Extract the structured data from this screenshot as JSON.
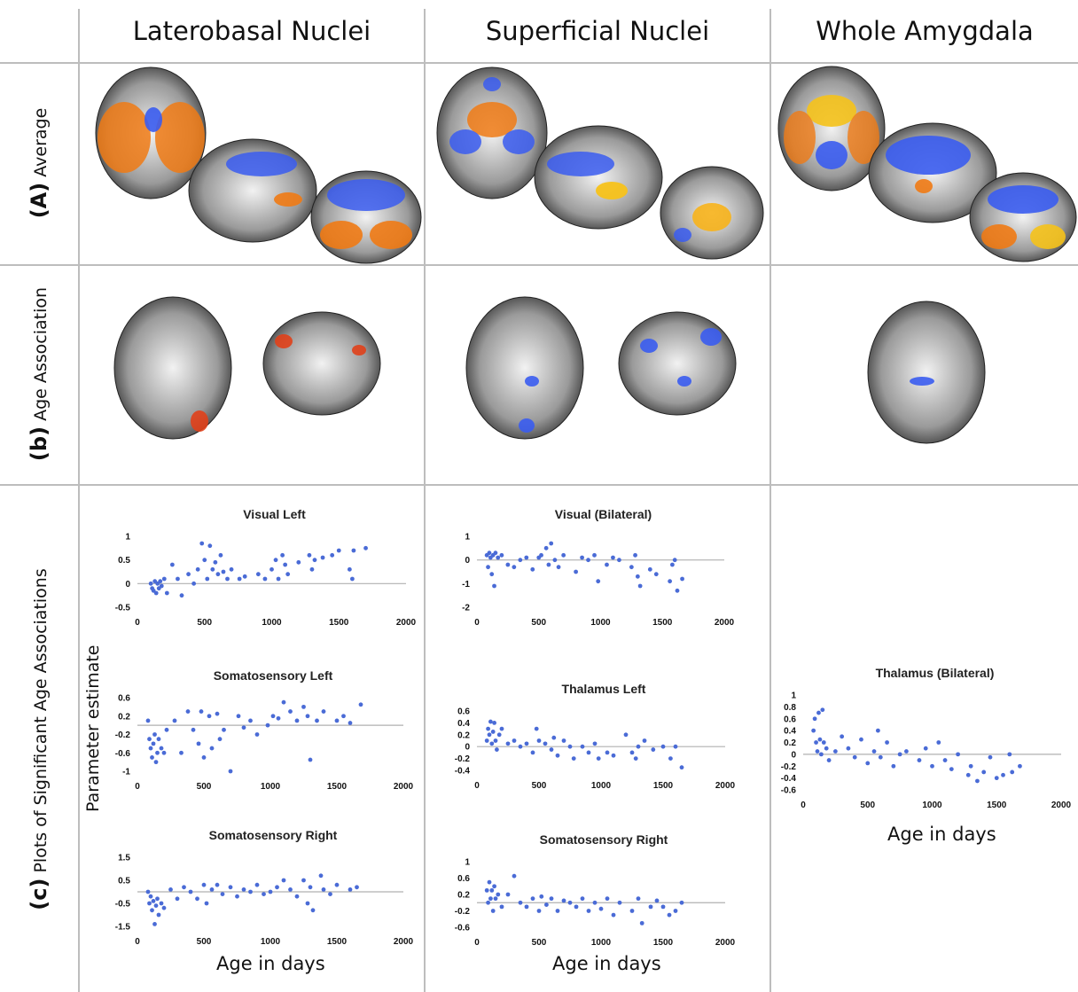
{
  "columns": [
    "Laterobasal Nuclei",
    "Superficial Nuclei",
    "Whole Amygdala"
  ],
  "rows": {
    "a": {
      "bold": "(A)",
      "rest": " Average"
    },
    "b": {
      "bold": "(b)",
      "rest": " Age Association"
    },
    "c": {
      "bold": "(c)",
      "rest": " Plots of Significant Age Associations"
    }
  },
  "y_axis_label": "Parameter estimate",
  "x_axis_label": "Age in days",
  "colors": {
    "points": "#4a6bd6",
    "zero_line": "#b0b0b0",
    "warm": "#f07a14",
    "cool": "#3a5cf0"
  },
  "chart_data": [
    {
      "type": "scatter",
      "title": "Visual Left",
      "xlim": [
        0,
        2000
      ],
      "xticks": [
        0,
        500,
        1000,
        1500,
        2000
      ],
      "ylim": [
        -0.5,
        1
      ],
      "yticks": [
        "-0.5",
        "0",
        "0.5",
        "1"
      ],
      "ytick_values": [
        -0.5,
        0,
        0.5,
        1
      ],
      "points": [
        [
          100,
          0
        ],
        [
          110,
          -0.1
        ],
        [
          120,
          -0.15
        ],
        [
          130,
          0.05
        ],
        [
          140,
          -0.2
        ],
        [
          150,
          0
        ],
        [
          160,
          -0.1
        ],
        [
          170,
          0.05
        ],
        [
          180,
          -0.05
        ],
        [
          200,
          0.1
        ],
        [
          220,
          -0.2
        ],
        [
          260,
          0.4
        ],
        [
          300,
          0.1
        ],
        [
          330,
          -0.25
        ],
        [
          380,
          0.2
        ],
        [
          420,
          0
        ],
        [
          450,
          0.3
        ],
        [
          480,
          0.85
        ],
        [
          500,
          0.5
        ],
        [
          520,
          0.1
        ],
        [
          540,
          0.8
        ],
        [
          560,
          0.3
        ],
        [
          580,
          0.45
        ],
        [
          600,
          0.2
        ],
        [
          620,
          0.6
        ],
        [
          640,
          0.25
        ],
        [
          670,
          0.1
        ],
        [
          700,
          0.3
        ],
        [
          760,
          0.1
        ],
        [
          800,
          0.15
        ],
        [
          900,
          0.2
        ],
        [
          950,
          0.1
        ],
        [
          1000,
          0.3
        ],
        [
          1030,
          0.5
        ],
        [
          1050,
          0.1
        ],
        [
          1080,
          0.6
        ],
        [
          1100,
          0.4
        ],
        [
          1120,
          0.2
        ],
        [
          1200,
          0.45
        ],
        [
          1280,
          0.6
        ],
        [
          1300,
          0.3
        ],
        [
          1320,
          0.5
        ],
        [
          1380,
          0.55
        ],
        [
          1450,
          0.6
        ],
        [
          1500,
          0.7
        ],
        [
          1580,
          0.3
        ],
        [
          1600,
          0.1
        ],
        [
          1610,
          0.7
        ],
        [
          1700,
          0.75
        ]
      ]
    },
    {
      "type": "scatter",
      "title": "Visual (Bilateral)",
      "xlim": [
        0,
        2000
      ],
      "xticks": [
        0,
        500,
        1000,
        1500,
        2000
      ],
      "ylim": [
        -2,
        1
      ],
      "yticks": [
        "-2",
        "-1",
        "0",
        "1"
      ],
      "ytick_values": [
        -2,
        -1,
        0,
        1
      ],
      "points": [
        [
          80,
          0.2
        ],
        [
          90,
          -0.3
        ],
        [
          100,
          0.3
        ],
        [
          110,
          0.1
        ],
        [
          120,
          -0.6
        ],
        [
          130,
          0.2
        ],
        [
          140,
          -1.1
        ],
        [
          150,
          0.3
        ],
        [
          170,
          0.1
        ],
        [
          200,
          0.2
        ],
        [
          250,
          -0.2
        ],
        [
          300,
          -0.3
        ],
        [
          350,
          0
        ],
        [
          400,
          0.1
        ],
        [
          450,
          -0.4
        ],
        [
          500,
          0.1
        ],
        [
          520,
          0.2
        ],
        [
          560,
          0.5
        ],
        [
          580,
          -0.2
        ],
        [
          600,
          0.7
        ],
        [
          630,
          0
        ],
        [
          660,
          -0.3
        ],
        [
          700,
          0.2
        ],
        [
          800,
          -0.5
        ],
        [
          850,
          0.1
        ],
        [
          900,
          0
        ],
        [
          950,
          0.2
        ],
        [
          980,
          -0.9
        ],
        [
          1050,
          -0.2
        ],
        [
          1100,
          0.1
        ],
        [
          1150,
          0
        ],
        [
          1250,
          -0.3
        ],
        [
          1280,
          0.2
        ],
        [
          1300,
          -0.7
        ],
        [
          1320,
          -1.1
        ],
        [
          1400,
          -0.4
        ],
        [
          1450,
          -0.6
        ],
        [
          1560,
          -0.9
        ],
        [
          1580,
          -0.2
        ],
        [
          1600,
          0
        ],
        [
          1620,
          -1.3
        ],
        [
          1660,
          -0.8
        ]
      ]
    },
    {
      "type": "scatter",
      "title": "Somatosensory Left",
      "xlim": [
        0,
        2000
      ],
      "xticks": [
        0,
        500,
        1000,
        1500,
        2000
      ],
      "ylim": [
        -1,
        0.6
      ],
      "yticks": [
        "-1",
        "-0.6",
        "-0.2",
        "0.2",
        "0.6"
      ],
      "ytick_values": [
        -1,
        -0.6,
        -0.2,
        0.2,
        0.6
      ],
      "points": [
        [
          80,
          0.1
        ],
        [
          90,
          -0.3
        ],
        [
          100,
          -0.5
        ],
        [
          110,
          -0.7
        ],
        [
          120,
          -0.4
        ],
        [
          130,
          -0.2
        ],
        [
          140,
          -0.8
        ],
        [
          150,
          -0.6
        ],
        [
          160,
          -0.3
        ],
        [
          180,
          -0.5
        ],
        [
          200,
          -0.6
        ],
        [
          220,
          -0.1
        ],
        [
          280,
          0.1
        ],
        [
          330,
          -0.6
        ],
        [
          380,
          0.3
        ],
        [
          420,
          -0.1
        ],
        [
          460,
          -0.4
        ],
        [
          480,
          0.3
        ],
        [
          500,
          -0.7
        ],
        [
          540,
          0.2
        ],
        [
          560,
          -0.5
        ],
        [
          600,
          0.25
        ],
        [
          620,
          -0.3
        ],
        [
          650,
          -0.1
        ],
        [
          700,
          -1
        ],
        [
          760,
          0.2
        ],
        [
          800,
          -0.05
        ],
        [
          850,
          0.1
        ],
        [
          900,
          -0.2
        ],
        [
          980,
          0
        ],
        [
          1020,
          0.2
        ],
        [
          1060,
          0.15
        ],
        [
          1100,
          0.5
        ],
        [
          1150,
          0.3
        ],
        [
          1200,
          0.1
        ],
        [
          1250,
          0.4
        ],
        [
          1280,
          0.2
        ],
        [
          1300,
          -0.75
        ],
        [
          1350,
          0.1
        ],
        [
          1400,
          0.3
        ],
        [
          1500,
          0.1
        ],
        [
          1550,
          0.2
        ],
        [
          1600,
          0.05
        ],
        [
          1680,
          0.45
        ]
      ]
    },
    {
      "type": "scatter",
      "title": "Thalamus Left",
      "xlim": [
        0,
        2000
      ],
      "xticks": [
        0,
        500,
        1000,
        1500,
        2000
      ],
      "ylim": [
        -0.4,
        0.6
      ],
      "yticks": [
        "-0.4",
        "-0.2",
        "0",
        "0.2",
        "0.4",
        "0.6"
      ],
      "ytick_values": [
        -0.4,
        -0.2,
        0,
        0.2,
        0.4,
        0.6
      ],
      "points": [
        [
          80,
          0.1
        ],
        [
          90,
          0.3
        ],
        [
          100,
          0.2
        ],
        [
          110,
          0.42
        ],
        [
          120,
          0.05
        ],
        [
          130,
          0.25
        ],
        [
          140,
          0.4
        ],
        [
          150,
          0.1
        ],
        [
          160,
          -0.05
        ],
        [
          180,
          0.2
        ],
        [
          200,
          0.3
        ],
        [
          250,
          0.05
        ],
        [
          300,
          0.1
        ],
        [
          350,
          0
        ],
        [
          400,
          0.05
        ],
        [
          450,
          -0.1
        ],
        [
          480,
          0.3
        ],
        [
          500,
          0.1
        ],
        [
          550,
          0.05
        ],
        [
          600,
          -0.05
        ],
        [
          620,
          0.15
        ],
        [
          650,
          -0.15
        ],
        [
          700,
          0.1
        ],
        [
          750,
          0
        ],
        [
          780,
          -0.2
        ],
        [
          850,
          0
        ],
        [
          900,
          -0.1
        ],
        [
          950,
          0.05
        ],
        [
          980,
          -0.2
        ],
        [
          1050,
          -0.1
        ],
        [
          1100,
          -0.15
        ],
        [
          1200,
          0.2
        ],
        [
          1250,
          -0.1
        ],
        [
          1280,
          -0.2
        ],
        [
          1300,
          0
        ],
        [
          1350,
          0.1
        ],
        [
          1420,
          -0.05
        ],
        [
          1500,
          0
        ],
        [
          1560,
          -0.2
        ],
        [
          1600,
          0
        ],
        [
          1650,
          -0.35
        ]
      ]
    },
    {
      "type": "scatter",
      "title": "Thalamus (Bilateral)",
      "xlim": [
        0,
        2000
      ],
      "xticks": [
        0,
        500,
        1000,
        1500,
        2000
      ],
      "ylim": [
        -0.6,
        1
      ],
      "yticks": [
        "-0.6",
        "-0.4",
        "-0.2",
        "0",
        "0.2",
        "0.4",
        "0.6",
        "0.8",
        "1"
      ],
      "ytick_values": [
        -0.6,
        -0.4,
        -0.2,
        0,
        0.2,
        0.4,
        0.6,
        0.8,
        1
      ],
      "points": [
        [
          80,
          0.4
        ],
        [
          90,
          0.6
        ],
        [
          100,
          0.2
        ],
        [
          110,
          0.05
        ],
        [
          120,
          0.7
        ],
        [
          130,
          0.25
        ],
        [
          140,
          0
        ],
        [
          150,
          0.75
        ],
        [
          160,
          0.2
        ],
        [
          180,
          0.1
        ],
        [
          200,
          -0.1
        ],
        [
          250,
          0.05
        ],
        [
          300,
          0.3
        ],
        [
          350,
          0.1
        ],
        [
          400,
          -0.05
        ],
        [
          450,
          0.25
        ],
        [
          500,
          -0.15
        ],
        [
          550,
          0.05
        ],
        [
          580,
          0.4
        ],
        [
          600,
          -0.05
        ],
        [
          650,
          0.2
        ],
        [
          700,
          -0.2
        ],
        [
          750,
          0
        ],
        [
          800,
          0.05
        ],
        [
          900,
          -0.1
        ],
        [
          950,
          0.1
        ],
        [
          1000,
          -0.2
        ],
        [
          1050,
          0.2
        ],
        [
          1100,
          -0.1
        ],
        [
          1150,
          -0.25
        ],
        [
          1200,
          0
        ],
        [
          1280,
          -0.35
        ],
        [
          1300,
          -0.2
        ],
        [
          1350,
          -0.45
        ],
        [
          1400,
          -0.3
        ],
        [
          1450,
          -0.05
        ],
        [
          1500,
          -0.4
        ],
        [
          1550,
          -0.35
        ],
        [
          1600,
          0
        ],
        [
          1620,
          -0.3
        ],
        [
          1680,
          -0.2
        ]
      ]
    },
    {
      "type": "scatter",
      "title": "Somatosensory Right",
      "xlim": [
        0,
        2000
      ],
      "xticks": [
        0,
        500,
        1000,
        1500,
        2000
      ],
      "ylim": [
        -1.5,
        1.5
      ],
      "yticks": [
        "-1.5",
        "-0.5",
        "0.5",
        "1.5"
      ],
      "ytick_values": [
        -1.5,
        -0.5,
        0.5,
        1.5
      ],
      "points": [
        [
          80,
          0
        ],
        [
          90,
          -0.5
        ],
        [
          100,
          -0.2
        ],
        [
          110,
          -0.8
        ],
        [
          120,
          -0.4
        ],
        [
          130,
          -1.4
        ],
        [
          140,
          -0.6
        ],
        [
          150,
          -0.3
        ],
        [
          160,
          -1
        ],
        [
          180,
          -0.5
        ],
        [
          200,
          -0.7
        ],
        [
          250,
          0.1
        ],
        [
          300,
          -0.3
        ],
        [
          350,
          0.2
        ],
        [
          400,
          0
        ],
        [
          450,
          -0.3
        ],
        [
          500,
          0.3
        ],
        [
          520,
          -0.5
        ],
        [
          560,
          0.1
        ],
        [
          600,
          0.3
        ],
        [
          640,
          -0.1
        ],
        [
          700,
          0.2
        ],
        [
          750,
          -0.2
        ],
        [
          800,
          0.1
        ],
        [
          850,
          0
        ],
        [
          900,
          0.3
        ],
        [
          950,
          -0.1
        ],
        [
          1000,
          0
        ],
        [
          1050,
          0.2
        ],
        [
          1100,
          0.5
        ],
        [
          1150,
          0.1
        ],
        [
          1200,
          -0.2
        ],
        [
          1250,
          0.5
        ],
        [
          1280,
          -0.5
        ],
        [
          1300,
          0.2
        ],
        [
          1320,
          -0.8
        ],
        [
          1380,
          0.7
        ],
        [
          1400,
          0.1
        ],
        [
          1450,
          -0.1
        ],
        [
          1500,
          0.3
        ],
        [
          1600,
          0.1
        ],
        [
          1650,
          0.2
        ]
      ]
    },
    {
      "type": "scatter",
      "title": "Somatosensory Right",
      "xlim": [
        0,
        2000
      ],
      "xticks": [
        0,
        500,
        1000,
        1500,
        2000
      ],
      "ylim": [
        -0.6,
        1
      ],
      "yticks": [
        "-0.6",
        "-0.2",
        "0.2",
        "0.6",
        "1"
      ],
      "ytick_values": [
        -0.6,
        -0.2,
        0.2,
        0.6,
        1
      ],
      "points": [
        [
          80,
          0.3
        ],
        [
          90,
          0
        ],
        [
          100,
          0.5
        ],
        [
          110,
          0.1
        ],
        [
          120,
          0.3
        ],
        [
          130,
          -0.2
        ],
        [
          140,
          0.4
        ],
        [
          150,
          0.1
        ],
        [
          170,
          0.2
        ],
        [
          200,
          -0.1
        ],
        [
          250,
          0.2
        ],
        [
          300,
          0.65
        ],
        [
          350,
          0
        ],
        [
          400,
          -0.1
        ],
        [
          450,
          0.1
        ],
        [
          500,
          -0.2
        ],
        [
          520,
          0.15
        ],
        [
          560,
          -0.05
        ],
        [
          600,
          0.1
        ],
        [
          650,
          -0.2
        ],
        [
          700,
          0.05
        ],
        [
          750,
          0
        ],
        [
          800,
          -0.1
        ],
        [
          850,
          0.1
        ],
        [
          900,
          -0.2
        ],
        [
          950,
          0
        ],
        [
          1000,
          -0.15
        ],
        [
          1050,
          0.1
        ],
        [
          1100,
          -0.3
        ],
        [
          1150,
          0
        ],
        [
          1250,
          -0.2
        ],
        [
          1300,
          0.1
        ],
        [
          1330,
          -0.5
        ],
        [
          1400,
          -0.1
        ],
        [
          1450,
          0.05
        ],
        [
          1500,
          -0.1
        ],
        [
          1550,
          -0.3
        ],
        [
          1600,
          -0.2
        ],
        [
          1650,
          0
        ]
      ]
    }
  ]
}
